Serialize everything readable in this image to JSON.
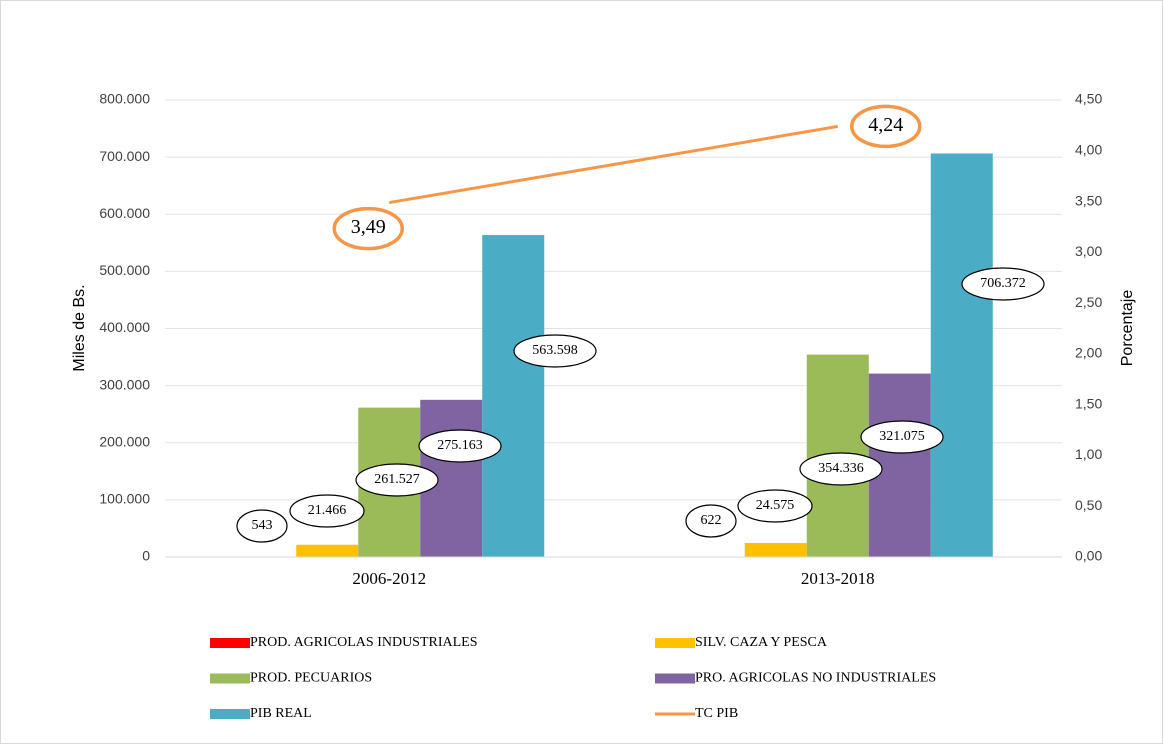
{
  "chart_data": {
    "type": "bar",
    "categories": [
      "2006-2012",
      "2013-2018"
    ],
    "ylabel": "Miles de Bs.",
    "y2label": "Porcentaje",
    "ylim": [
      0,
      800000
    ],
    "yticks": [
      0,
      {
        "value": 100000,
        "label": "100.000"
      },
      {
        "value": 200000,
        "label": "200.000"
      },
      {
        "value": 300000,
        "label": "300.000"
      },
      {
        "value": 400000,
        "label": "400.000"
      },
      {
        "value": 500000,
        "label": "500.000"
      },
      {
        "value": 600000,
        "label": "600.000"
      },
      {
        "value": 700000,
        "label": "700.000"
      },
      {
        "value": 800000,
        "label": "800.000"
      }
    ],
    "y2lim": [
      0,
      4.5
    ],
    "y2ticks": [
      {
        "value": 0,
        "label": "0,00"
      },
      {
        "value": 0.5,
        "label": "0,50"
      },
      {
        "value": 1,
        "label": "1,00"
      },
      {
        "value": 1.5,
        "label": "1,50"
      },
      {
        "value": 2,
        "label": "2,00"
      },
      {
        "value": 2.5,
        "label": "2,50"
      },
      {
        "value": 3,
        "label": "3,00"
      },
      {
        "value": 3.5,
        "label": "3,50"
      },
      {
        "value": 4,
        "label": "4,00"
      },
      {
        "value": 4.5,
        "label": "4,50"
      }
    ],
    "grid": true,
    "legend": "bottom",
    "series": [
      {
        "name": "PROD. AGRICOLAS INDUSTRIALES",
        "color": "#ff0000",
        "values": [
          543,
          622
        ],
        "value_labels": [
          "543",
          "622"
        ]
      },
      {
        "name": "SILV. CAZA Y PESCA",
        "color": "#ffc000",
        "values": [
          21466,
          24575
        ],
        "value_labels": [
          "21.466",
          "24.575"
        ]
      },
      {
        "name": "PROD. PECUARIOS",
        "color": "#9bbb59",
        "values": [
          261527,
          354336
        ],
        "value_labels": [
          "261.527",
          "354.336"
        ]
      },
      {
        "name": "PRO. AGRICOLAS NO INDUSTRIALES",
        "color": "#8064a2",
        "values": [
          275163,
          321075
        ],
        "value_labels": [
          "275.163",
          "321.075"
        ]
      },
      {
        "name": "PIB REAL",
        "color": "#4bacc6",
        "values": [
          563598,
          706372
        ],
        "value_labels": [
          "563.598",
          "706.372"
        ]
      },
      {
        "name": "TC PIB",
        "color": "#f79646",
        "type": "line",
        "axis": "y2",
        "values": [
          3.49,
          4.24
        ],
        "value_labels": [
          "3,49",
          "4,24"
        ]
      }
    ]
  }
}
